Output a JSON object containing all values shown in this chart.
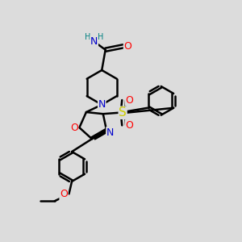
{
  "background_color": "#dcdcdc",
  "bond_color": "#000000",
  "bond_width": 1.8,
  "atom_colors": {
    "N": "#0000cc",
    "O": "#ff0000",
    "S": "#cccc00",
    "H": "#008080"
  },
  "fig_width": 3.0,
  "fig_height": 3.0,
  "dpi": 100
}
